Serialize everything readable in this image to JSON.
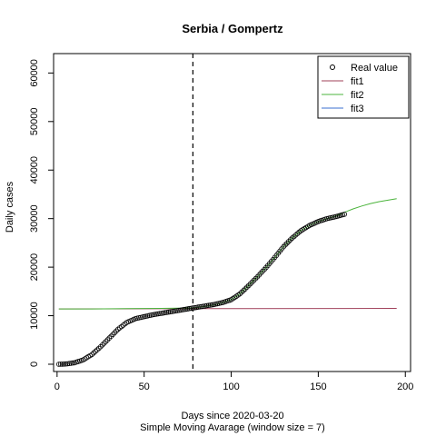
{
  "chart_data": {
    "type": "scatter",
    "title": "Serbia / Gompertz",
    "xlabel": "Days since 2020-03-20",
    "subtitle": "Simple Moving Avarage (window size = 7)",
    "ylabel": "Daily cases",
    "xlim": [
      -2,
      203
    ],
    "ylim": [
      -1500,
      64000
    ],
    "x_ticks": [
      0,
      50,
      100,
      150,
      200
    ],
    "y_ticks": [
      0,
      10000,
      20000,
      30000,
      40000,
      50000,
      60000
    ],
    "vline_x": 78,
    "legend": {
      "placement": "top-right",
      "entries": [
        {
          "label": "Real value",
          "kind": "point",
          "color": "#000000"
        },
        {
          "label": "fit1",
          "kind": "line",
          "color": "#a0405a"
        },
        {
          "label": "fit2",
          "kind": "line",
          "color": "#4bb43c"
        },
        {
          "label": "fit3",
          "kind": "line",
          "color": "#3a6fd1"
        }
      ]
    },
    "real_value": {
      "name": "Real value",
      "color": "#000000",
      "x": [
        1,
        5,
        10,
        15,
        20,
        25,
        30,
        35,
        40,
        45,
        50,
        55,
        60,
        65,
        70,
        75,
        80,
        85,
        90,
        95,
        100,
        105,
        110,
        115,
        120,
        125,
        130,
        135,
        140,
        145,
        150,
        155,
        160,
        165
      ],
      "y": [
        0,
        50,
        300,
        900,
        2000,
        3600,
        5400,
        7200,
        8600,
        9400,
        9800,
        10200,
        10500,
        10800,
        11100,
        11400,
        11700,
        12000,
        12300,
        12700,
        13300,
        14500,
        16200,
        18000,
        19900,
        22000,
        24200,
        26000,
        27500,
        28600,
        29400,
        30000,
        30400,
        30900
      ]
    },
    "series": [
      {
        "name": "fit1",
        "color": "#a0405a",
        "x": [
          1,
          78,
          195
        ],
        "y": [
          11400,
          11450,
          11500
        ]
      },
      {
        "name": "fit2",
        "color": "#4bb43c",
        "x": [
          1,
          20,
          40,
          60,
          78,
          85,
          90,
          95,
          100,
          105,
          110,
          115,
          120,
          125,
          130,
          135,
          140,
          145,
          150,
          155,
          160,
          165,
          170,
          175,
          180,
          185,
          190,
          195
        ],
        "y": [
          11400,
          11400,
          11450,
          11500,
          11600,
          11900,
          12200,
          12700,
          13300,
          14500,
          16200,
          18000,
          19900,
          22000,
          24200,
          26000,
          27500,
          28600,
          29400,
          30000,
          30500,
          31300,
          32000,
          32600,
          33100,
          33500,
          33800,
          34100
        ]
      },
      {
        "name": "fit3",
        "color": "#3a6fd1",
        "x": [],
        "y": []
      }
    ]
  }
}
